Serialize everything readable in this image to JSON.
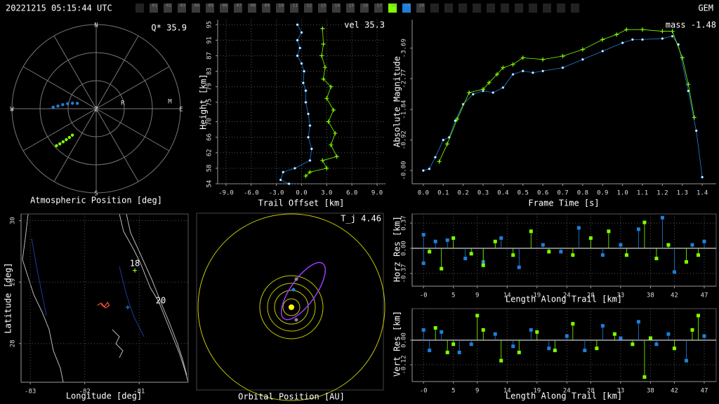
{
  "header": {
    "timestamp": "20221215 05:15:44 UTC",
    "shower": "GEM",
    "cameras": [
      "01",
      "02",
      "03",
      "04",
      "05",
      "06",
      "07",
      "08",
      "09",
      "10",
      "11",
      "12",
      "13",
      "14",
      "15",
      "16",
      "17",
      "18",
      "19",
      "20"
    ],
    "camera_colors": [
      "#3a3a3a",
      "#3a3a3a",
      "#3a3a3a",
      "#3a3a3a",
      "#3a3a3a",
      "#3a3a3a",
      "#3a3a3a",
      "#3a3a3a",
      "#3a3a3a",
      "#3a3a3a",
      "#3a3a3a",
      "#3a3a3a",
      "#3a3a3a",
      "#3a3a3a",
      "#3a3a3a",
      "#3a3a3a",
      "#3a3a3a",
      "#7fff00",
      "#1e7fd8",
      "#3a3a3a"
    ]
  },
  "chart_data": [
    {
      "type": "polar",
      "title": "Atmospheric Position [deg]",
      "annotations": [
        "N",
        "E",
        "S",
        "W",
        "Z",
        "R",
        "M",
        "Q* 35.9"
      ],
      "series": [
        {
          "color": "#1e7fd8",
          "x": [
            272,
            274,
            277,
            280,
            283,
            286
          ],
          "values": [
            46,
            41,
            36,
            31,
            26,
            21
          ]
        },
        {
          "color": "#7fff00",
          "x": [
            227,
            226,
            225,
            224,
            223,
            222
          ],
          "values": [
            58,
            54,
            50,
            46,
            42,
            38
          ]
        }
      ]
    },
    {
      "type": "line",
      "xlabel": "Trail Offset [km]",
      "ylabel": "Height [km]",
      "annotations": [
        "vel 35.3"
      ],
      "grid": true,
      "xlim": [
        -10,
        10
      ],
      "ylim": [
        54,
        96.3
      ],
      "xticks": [
        {
          "value": -9,
          "label": "-9.0"
        },
        {
          "value": -6,
          "label": "-6.0"
        },
        {
          "value": -3,
          "label": "-3.0"
        },
        {
          "value": 0,
          "label": "0.0"
        },
        {
          "value": 3,
          "label": "3.0"
        },
        {
          "value": 6,
          "label": "6.0"
        },
        {
          "value": 9,
          "label": "9.0"
        }
      ],
      "yticks": [
        54,
        58,
        62,
        66,
        70,
        75,
        79,
        83,
        87,
        91,
        95
      ],
      "series": [
        {
          "color": "#1e7fd8",
          "marker": "dot",
          "x": [
            -0.5,
            0,
            -0.5,
            -0.2,
            -0.5,
            0,
            0.3,
            0.2,
            0.5,
            0.5,
            0.8,
            1.0,
            0.8,
            1.2,
            1.0,
            -0.8,
            -2.2,
            -2.5,
            -1.5
          ],
          "values": [
            95,
            93,
            91,
            89,
            87,
            85,
            83,
            80,
            78,
            75,
            72,
            69,
            66,
            63,
            60,
            58,
            57,
            55,
            54
          ]
        },
        {
          "color": "#7fff00",
          "marker": "plus",
          "x": [
            2.5,
            2.6,
            2.4,
            2.8,
            2.6,
            3.5,
            3.0,
            3.8,
            3.2,
            4.0,
            3.5,
            4.2,
            2.5,
            3.0,
            1.0,
            0.5
          ],
          "values": [
            94,
            90,
            87,
            84,
            81,
            79,
            76,
            73,
            70,
            67,
            64,
            61,
            60,
            58,
            57,
            56
          ]
        }
      ]
    },
    {
      "type": "line",
      "xlabel": "Frame Time [s]",
      "ylabel": "Absolute Magnitude",
      "annotations": [
        "mass -1.48"
      ],
      "grid": false,
      "xlim": [
        -0.056,
        1.47
      ],
      "ylim": [
        0.4,
        -4.55
      ],
      "xticks": [
        {
          "value": 0,
          "label": "0.0"
        },
        0.1,
        0.2,
        0.3,
        0.4,
        0.5,
        0.6,
        0.7,
        0.8,
        0.9,
        {
          "value": 1,
          "label": "1.0"
        },
        1.1,
        1.2,
        1.3,
        1.4
      ],
      "yticks": [
        -3.69,
        -2.77,
        -1.84,
        -0.92,
        {
          "value": 0,
          "label": "-0.00"
        }
      ],
      "series": [
        {
          "color": "#1e7fd8",
          "marker": "dot",
          "x": [
            0,
            0.03,
            0.06,
            0.1,
            0.13,
            0.16,
            0.2,
            0.25,
            0.3,
            0.35,
            0.4,
            0.45,
            0.5,
            0.55,
            0.6,
            0.7,
            0.8,
            0.9,
            1.0,
            1.05,
            1.1,
            1.2,
            1.25,
            1.28,
            1.33,
            1.37,
            1.4
          ],
          "values": [
            0,
            -0.05,
            -0.4,
            -0.92,
            -1.0,
            -1.5,
            -2.0,
            -2.3,
            -2.4,
            -2.35,
            -2.5,
            -2.9,
            -3.0,
            -2.95,
            -3.0,
            -3.1,
            -3.35,
            -3.6,
            -3.85,
            -3.95,
            -3.95,
            -3.98,
            -4.05,
            -3.8,
            -2.4,
            -1.2,
            0.2
          ]
        },
        {
          "color": "#7fff00",
          "marker": "plus",
          "x": [
            0.08,
            0.12,
            0.17,
            0.23,
            0.3,
            0.33,
            0.37,
            0.4,
            0.45,
            0.5,
            0.6,
            0.7,
            0.8,
            0.9,
            0.97,
            1.02,
            1.1,
            1.2,
            1.25,
            1.3,
            1.33,
            1.36
          ],
          "values": [
            -0.27,
            -0.8,
            -1.55,
            -2.35,
            -2.45,
            -2.65,
            -2.9,
            -3.1,
            -3.2,
            -3.4,
            -3.35,
            -3.45,
            -3.65,
            -3.95,
            -4.1,
            -4.25,
            -4.25,
            -4.2,
            -4.2,
            -3.4,
            -2.6,
            -1.6
          ]
        }
      ]
    },
    {
      "type": "map",
      "xlabel": "Longitude [deg]",
      "ylabel": "Latitude [deg]",
      "annotations": [
        "18",
        "20"
      ],
      "grid": true,
      "xlim": [
        -83.17,
        -80.1
      ],
      "ylim": [
        27.37,
        30.11
      ],
      "xticks": [
        -83,
        -82,
        -81
      ],
      "yticks": [
        28,
        29,
        30
      ],
      "series": [
        {
          "color": "#ff5030",
          "marker": "line",
          "x": [
            -81.77,
            -81.7,
            -81.64,
            -81.58,
            -81.55,
            -81.62,
            -81.7
          ],
          "values": [
            28.62,
            28.66,
            28.6,
            28.67,
            28.62,
            28.58,
            28.64
          ]
        },
        {
          "color": "#7fff00",
          "marker": "plus",
          "x": [
            -81.08
          ],
          "values": [
            29.19
          ]
        },
        {
          "color": "#1e7fd8",
          "marker": "plus",
          "x": [
            -81.21
          ],
          "values": [
            28.59
          ]
        }
      ]
    },
    {
      "type": "orbit",
      "title": "Orbital Position [AU]",
      "annotations": [
        "T_j 4.46"
      ]
    },
    {
      "type": "stem",
      "xlabel": "Length Along Trail [km]",
      "ylabel": "Horz Res [km]",
      "grid": true,
      "xlim": [
        -1.9,
        49
      ],
      "ylim": [
        -0.557,
        0.505
      ],
      "xticks": [
        {
          "value": 0,
          "label": "-0"
        },
        5,
        9,
        14,
        19,
        24,
        28,
        33,
        38,
        42,
        47
      ],
      "yticks": [
        -0.37,
        {
          "value": 0,
          "label": "0.00"
        },
        0.37
      ],
      "series": [
        {
          "color": "#1e7fd8",
          "x": [
            0,
            0,
            2,
            4,
            7,
            10,
            13,
            16,
            20,
            23,
            26,
            30,
            33,
            36,
            40,
            42,
            45,
            47
          ],
          "values": [
            -0.22,
            0.2,
            0.1,
            0.12,
            -0.15,
            -0.2,
            0.15,
            -0.28,
            0.05,
            -0.05,
            0.3,
            -0.1,
            0.05,
            0.28,
            0.45,
            -0.35,
            0.05,
            0.1
          ]
        },
        {
          "color": "#7fff00",
          "x": [
            1,
            3,
            5,
            8,
            10,
            12,
            15,
            18,
            21,
            25,
            28,
            31,
            34,
            37,
            39,
            41,
            44,
            46
          ],
          "values": [
            -0.05,
            -0.3,
            0.15,
            -0.08,
            -0.25,
            0.1,
            -0.1,
            0.25,
            -0.05,
            -0.1,
            0.15,
            0.25,
            -0.1,
            0.38,
            -0.15,
            0.05,
            -0.2,
            -0.1
          ]
        }
      ]
    },
    {
      "type": "stem",
      "xlabel": "Length Along Trail [km]",
      "ylabel": "Vert Res [km]",
      "grid": true,
      "xlim": [
        -1.9,
        49
      ],
      "ylim": [
        -0.202,
        0.154
      ],
      "xticks": [
        {
          "value": 0,
          "label": "-0"
        },
        5,
        9,
        14,
        19,
        24,
        28,
        33,
        38,
        42,
        47
      ],
      "yticks": [
        -0.12,
        {
          "value": 0,
          "label": "0.00"
        }
      ],
      "series": [
        {
          "color": "#1e7fd8",
          "x": [
            0,
            1,
            3,
            6,
            8,
            12,
            15,
            18,
            21,
            24,
            27,
            30,
            33,
            36,
            39,
            41,
            44,
            47
          ],
          "values": [
            0.05,
            -0.05,
            0.04,
            -0.06,
            -0.02,
            0.03,
            -0.03,
            0.05,
            -0.04,
            0.02,
            -0.05,
            0.07,
            0.01,
            0.09,
            -0.02,
            0.03,
            -0.1,
            0.02
          ]
        },
        {
          "color": "#7fff00",
          "x": [
            2,
            4,
            5,
            9,
            10,
            13,
            16,
            19,
            22,
            25,
            29,
            32,
            35,
            37,
            38,
            42,
            45,
            46
          ],
          "values": [
            0.06,
            -0.06,
            -0.02,
            0.12,
            0.05,
            -0.1,
            -0.06,
            0.04,
            -0.05,
            0.08,
            -0.04,
            0.03,
            -0.02,
            -0.18,
            0.01,
            -0.04,
            0.05,
            0.12
          ]
        }
      ]
    }
  ]
}
